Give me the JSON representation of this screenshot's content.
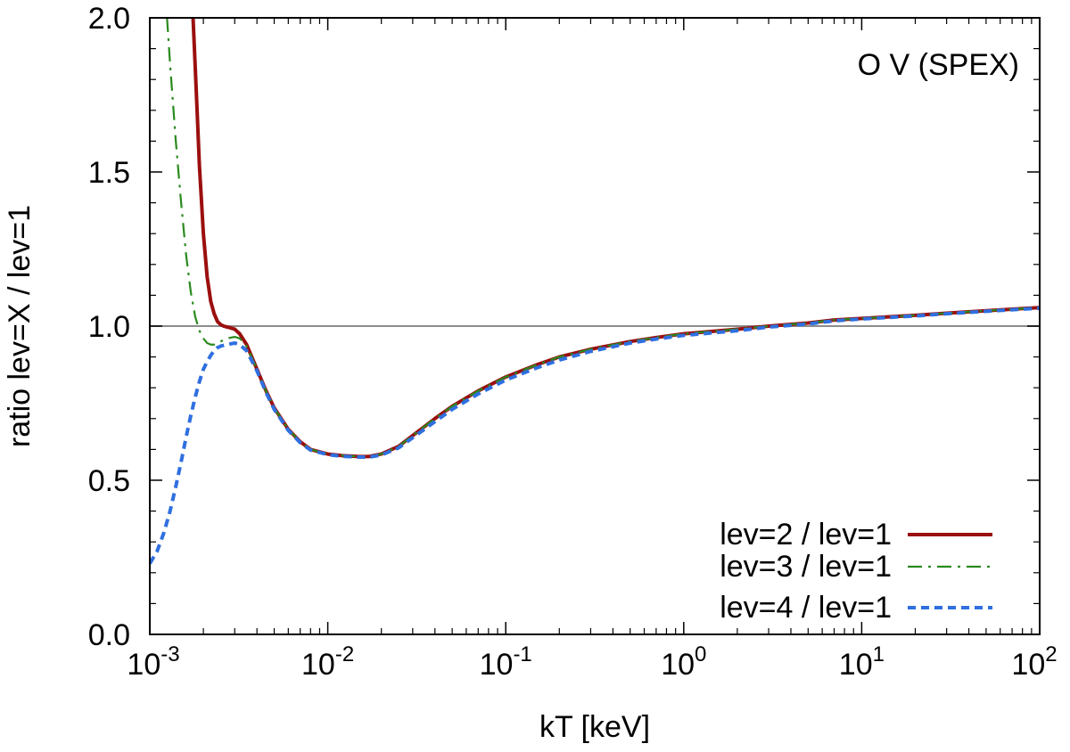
{
  "chart_data": {
    "type": "line",
    "title": "",
    "annotation": "O V (SPEX)",
    "xlabel": "kT [keV]",
    "ylabel": "ratio lev=X / lev=1",
    "xscale": "log",
    "xlim": [
      0.001,
      100
    ],
    "ylim": [
      0.0,
      2.0
    ],
    "x_ticks": [
      {
        "value": 0.001,
        "base": "10",
        "exp": "-3"
      },
      {
        "value": 0.01,
        "base": "10",
        "exp": "-2"
      },
      {
        "value": 0.1,
        "base": "10",
        "exp": "-1"
      },
      {
        "value": 1,
        "base": "10",
        "exp": "0"
      },
      {
        "value": 10,
        "base": "10",
        "exp": "1"
      },
      {
        "value": 100,
        "base": "10",
        "exp": "2"
      }
    ],
    "y_ticks": [
      {
        "value": 0.0,
        "label": "0.0"
      },
      {
        "value": 0.5,
        "label": "0.5"
      },
      {
        "value": 1.0,
        "label": "1.0"
      },
      {
        "value": 1.5,
        "label": "1.5"
      },
      {
        "value": 2.0,
        "label": "2.0"
      }
    ],
    "reference_line": {
      "y": 1.0,
      "color": "#8c8c8c"
    },
    "legend_position": "bottom-right",
    "series": [
      {
        "name": "lev=2 / lev=1",
        "color": "#9b0f0f",
        "style": "solid",
        "x": [
          0.00175,
          0.0018,
          0.00185,
          0.0019,
          0.002,
          0.0021,
          0.0022,
          0.0023,
          0.0024,
          0.0025,
          0.0026,
          0.0028,
          0.003,
          0.0032,
          0.0035,
          0.004,
          0.0045,
          0.005,
          0.006,
          0.007,
          0.008,
          0.01,
          0.012,
          0.015,
          0.017,
          0.02,
          0.025,
          0.03,
          0.04,
          0.05,
          0.07,
          0.1,
          0.15,
          0.2,
          0.3,
          0.5,
          0.7,
          1,
          2,
          3,
          5,
          7,
          10,
          20,
          30,
          50,
          70,
          100
        ],
        "y": [
          2.0,
          1.84,
          1.68,
          1.52,
          1.3,
          1.16,
          1.08,
          1.04,
          1.015,
          1.005,
          1.0,
          0.995,
          0.99,
          0.975,
          0.94,
          0.86,
          0.79,
          0.735,
          0.665,
          0.625,
          0.6,
          0.585,
          0.58,
          0.577,
          0.577,
          0.585,
          0.61,
          0.645,
          0.7,
          0.74,
          0.79,
          0.835,
          0.875,
          0.9,
          0.925,
          0.95,
          0.963,
          0.975,
          0.99,
          1.0,
          1.01,
          1.02,
          1.025,
          1.035,
          1.042,
          1.05,
          1.055,
          1.06
        ]
      },
      {
        "name": "lev=3 / lev=1",
        "color": "#2a8a1e",
        "style": "dashdot",
        "x": [
          0.00125,
          0.0013,
          0.0014,
          0.0015,
          0.0016,
          0.0017,
          0.0018,
          0.0019,
          0.002,
          0.0021,
          0.0022,
          0.0023,
          0.0024,
          0.0025,
          0.0027,
          0.003,
          0.0032,
          0.0035,
          0.004,
          0.0045,
          0.005,
          0.006,
          0.007,
          0.008,
          0.01,
          0.012,
          0.015,
          0.017,
          0.02,
          0.025,
          0.03,
          0.04,
          0.05,
          0.07,
          0.1,
          0.15,
          0.2,
          0.3,
          0.5,
          0.7,
          1,
          2,
          3,
          5,
          7,
          10,
          20,
          30,
          50,
          70,
          100
        ],
        "y": [
          2.0,
          1.85,
          1.6,
          1.4,
          1.23,
          1.11,
          1.03,
          0.985,
          0.96,
          0.945,
          0.94,
          0.94,
          0.945,
          0.95,
          0.96,
          0.965,
          0.96,
          0.935,
          0.86,
          0.79,
          0.735,
          0.665,
          0.625,
          0.6,
          0.585,
          0.58,
          0.577,
          0.577,
          0.585,
          0.61,
          0.645,
          0.7,
          0.74,
          0.79,
          0.835,
          0.875,
          0.9,
          0.925,
          0.95,
          0.963,
          0.975,
          0.99,
          1.0,
          1.01,
          1.02,
          1.025,
          1.035,
          1.042,
          1.05,
          1.055,
          1.06
        ]
      },
      {
        "name": "lev=4 / lev=1",
        "color": "#2f6fe0",
        "style": "dashed",
        "x": [
          0.001,
          0.0011,
          0.0012,
          0.0013,
          0.0014,
          0.0015,
          0.0016,
          0.0017,
          0.0018,
          0.0019,
          0.002,
          0.0021,
          0.0022,
          0.0023,
          0.0024,
          0.0025,
          0.0027,
          0.003,
          0.0032,
          0.0035,
          0.004,
          0.0045,
          0.005,
          0.006,
          0.007,
          0.008,
          0.01,
          0.012,
          0.015,
          0.017,
          0.02,
          0.025,
          0.03,
          0.04,
          0.05,
          0.07,
          0.1,
          0.15,
          0.2,
          0.3,
          0.5,
          0.7,
          1,
          2,
          3,
          5,
          7,
          10,
          20,
          30,
          50,
          70,
          100
        ],
        "y": [
          0.23,
          0.27,
          0.33,
          0.4,
          0.48,
          0.56,
          0.64,
          0.71,
          0.77,
          0.82,
          0.86,
          0.885,
          0.905,
          0.92,
          0.93,
          0.935,
          0.94,
          0.945,
          0.94,
          0.92,
          0.855,
          0.785,
          0.73,
          0.662,
          0.622,
          0.598,
          0.583,
          0.578,
          0.575,
          0.575,
          0.582,
          0.605,
          0.638,
          0.69,
          0.73,
          0.78,
          0.825,
          0.865,
          0.89,
          0.918,
          0.945,
          0.958,
          0.97,
          0.985,
          0.997,
          1.007,
          1.017,
          1.023,
          1.033,
          1.04,
          1.048,
          1.053,
          1.058
        ]
      }
    ]
  }
}
